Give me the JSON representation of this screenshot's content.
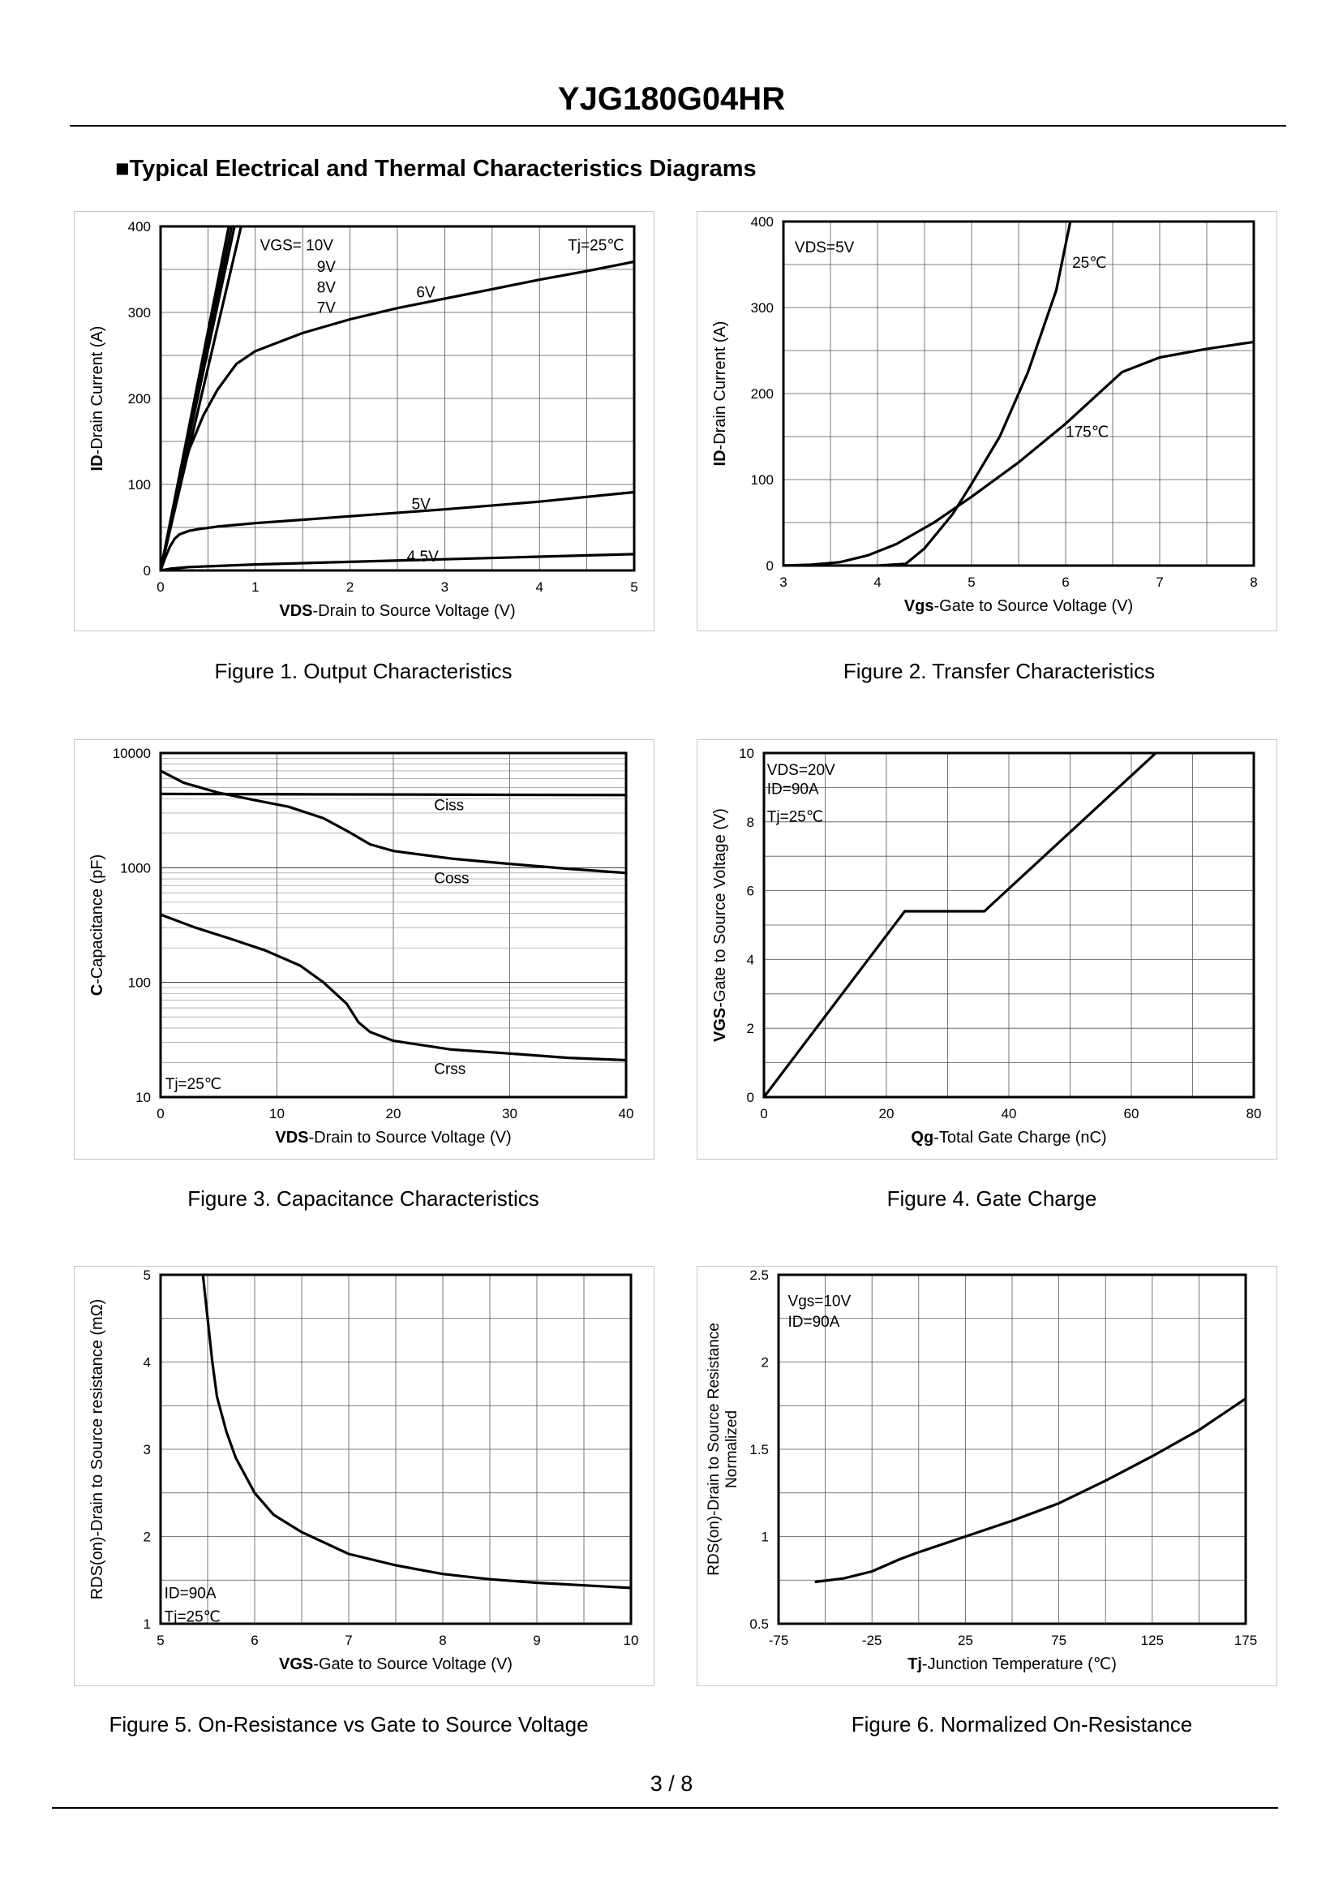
{
  "header": {
    "title": "YJG180G04HR"
  },
  "section": {
    "heading": "■Typical Electrical and Thermal Characteristics Diagrams"
  },
  "footer": {
    "page": "3 / 8"
  },
  "chart_data": [
    {
      "id": "fig1",
      "type": "line",
      "caption": "Figure 1.  Output Characteristics",
      "xlabel_bold": "VDS",
      "xlabel_rest": "-Drain to Source Voltage (V)",
      "ylabel_bold": "ID",
      "ylabel_rest": "-Drain Current (A)",
      "xlim": [
        0,
        5
      ],
      "ylim": [
        0,
        400
      ],
      "xticks": [
        0,
        1,
        2,
        3,
        4,
        5
      ],
      "yticks": [
        0,
        100,
        200,
        300,
        400
      ],
      "grid_x": [
        0.5,
        1,
        1.5,
        2,
        2.5,
        3,
        3.5,
        4,
        4.5
      ],
      "grid_y": [
        50,
        100,
        150,
        200,
        250,
        300,
        350
      ],
      "annotations": [
        {
          "text": "VGS= 10V",
          "x": 1.05,
          "y": 378
        },
        {
          "text": "9V",
          "x": 1.65,
          "y": 353
        },
        {
          "text": "8V",
          "x": 1.65,
          "y": 329
        },
        {
          "text": "7V",
          "x": 1.65,
          "y": 305
        },
        {
          "text": "Tj=25℃",
          "x": 4.3,
          "y": 378
        },
        {
          "text": "6V",
          "x": 2.7,
          "y": 323
        },
        {
          "text": "5V",
          "x": 2.65,
          "y": 77
        },
        {
          "text": "4.5V",
          "x": 2.6,
          "y": 16
        }
      ],
      "series": [
        {
          "name": "10V",
          "x": [
            0,
            0.75
          ],
          "y": [
            0,
            400
          ]
        },
        {
          "name": "9V",
          "x": [
            0,
            0.72
          ],
          "y": [
            0,
            400
          ]
        },
        {
          "name": "8V",
          "x": [
            0,
            0.78
          ],
          "y": [
            0,
            400
          ]
        },
        {
          "name": "7V",
          "x": [
            0,
            0.85
          ],
          "y": [
            0,
            400
          ]
        },
        {
          "name": "6V",
          "x": [
            0,
            0.1,
            0.2,
            0.3,
            0.45,
            0.6,
            0.8,
            1.0,
            1.5,
            2.0,
            2.5,
            3.0,
            3.5,
            4.0,
            4.5,
            5.0
          ],
          "y": [
            0,
            50,
            100,
            140,
            180,
            210,
            240,
            255,
            276,
            292,
            305,
            316,
            327,
            338,
            348,
            359
          ]
        },
        {
          "name": "5V",
          "x": [
            0,
            0.05,
            0.1,
            0.15,
            0.2,
            0.3,
            0.4,
            0.6,
            1.0,
            1.5,
            2.0,
            3.0,
            4.0,
            5.0
          ],
          "y": [
            0,
            15,
            28,
            37,
            42,
            46,
            48,
            51,
            55,
            59,
            63,
            71,
            80,
            91
          ]
        },
        {
          "name": "4.5V",
          "x": [
            0,
            0.1,
            0.3,
            1.0,
            2.0,
            3.0,
            4.0,
            5.0
          ],
          "y": [
            0,
            2,
            4,
            7,
            10,
            13,
            16,
            19
          ]
        }
      ]
    },
    {
      "id": "fig2",
      "type": "line",
      "caption": "Figure 2.  Transfer Characteristics",
      "xlabel_bold": "Vgs",
      "xlabel_rest": "-Gate to Source Voltage (V)",
      "ylabel_bold": "ID",
      "ylabel_rest": "-Drain Current (A)",
      "xlim": [
        3,
        8
      ],
      "ylim": [
        0,
        400
      ],
      "xticks": [
        3,
        4,
        5,
        6,
        7,
        8
      ],
      "yticks": [
        0,
        100,
        200,
        300,
        400
      ],
      "grid_x": [
        3.5,
        4,
        4.5,
        5,
        5.5,
        6,
        6.5,
        7,
        7.5
      ],
      "grid_y": [
        50,
        100,
        150,
        200,
        250,
        300,
        350
      ],
      "annotations": [
        {
          "text": "VDS=5V",
          "x": 3.12,
          "y": 370
        },
        {
          "text": "25℃",
          "x": 6.07,
          "y": 352
        },
        {
          "text": "175℃",
          "x": 6.0,
          "y": 155
        }
      ],
      "series": [
        {
          "name": "25℃",
          "x": [
            3.0,
            4.0,
            4.3,
            4.5,
            4.8,
            5.0,
            5.3,
            5.6,
            5.9,
            6.05
          ],
          "y": [
            0,
            0,
            2,
            20,
            60,
            95,
            150,
            225,
            320,
            400
          ]
        },
        {
          "name": "175℃",
          "x": [
            3.0,
            3.3,
            3.6,
            3.9,
            4.2,
            4.6,
            5.0,
            5.5,
            6.0,
            6.3,
            6.6,
            7.0,
            7.5,
            8.0
          ],
          "y": [
            0,
            1,
            4,
            12,
            25,
            50,
            80,
            120,
            165,
            195,
            225,
            242,
            252,
            260
          ]
        }
      ]
    },
    {
      "id": "fig3",
      "type": "line",
      "caption": "Figure 3.  Capacitance Characteristics",
      "xlabel_bold": "VDS",
      "xlabel_rest": "-Drain to Source Voltage (V)",
      "ylabel_bold": "C",
      "ylabel_rest": "-Capacitance (pF)",
      "yscale": "log",
      "xlim": [
        0,
        40
      ],
      "ylim": [
        10,
        10000
      ],
      "xticks": [
        0,
        10,
        20,
        30,
        40
      ],
      "yticks": [
        10,
        100,
        1000,
        10000
      ],
      "grid_x": [
        10,
        20,
        30
      ],
      "annotations": [
        {
          "text": "Ciss",
          "x": 23.5,
          "y": 3500
        },
        {
          "text": "Coss",
          "x": 23.5,
          "y": 810
        },
        {
          "text": "Crss",
          "x": 23.5,
          "y": 17.5
        },
        {
          "text": "Tj=25℃",
          "x": 0.4,
          "y": 13
        }
      ],
      "series": [
        {
          "name": "Ciss",
          "x": [
            0,
            40
          ],
          "y": [
            4400,
            4300
          ]
        },
        {
          "name": "Coss",
          "x": [
            0,
            2,
            5,
            8,
            11,
            14,
            16,
            18,
            20,
            25,
            30,
            35,
            40
          ],
          "y": [
            7000,
            5500,
            4500,
            3900,
            3400,
            2700,
            2100,
            1600,
            1400,
            1200,
            1080,
            980,
            900
          ]
        },
        {
          "name": "Crss",
          "x": [
            0,
            3,
            6,
            9,
            12,
            14,
            16,
            17,
            18,
            20,
            25,
            30,
            35,
            40
          ],
          "y": [
            390,
            300,
            240,
            190,
            140,
            100,
            65,
            45,
            37,
            31,
            26,
            24,
            22,
            21
          ]
        }
      ]
    },
    {
      "id": "fig4",
      "type": "line",
      "caption": "Figure 4.  Gate Charge",
      "xlabel_bold": "Qg",
      "xlabel_rest": "-Total Gate Charge (nC)",
      "ylabel_bold": "VGS",
      "ylabel_rest": "-Gate to Source Voltage (V)",
      "xlim": [
        0,
        80
      ],
      "ylim": [
        0,
        10
      ],
      "xticks": [
        0,
        20,
        40,
        60,
        80
      ],
      "yticks": [
        0,
        2,
        4,
        6,
        8,
        10
      ],
      "grid_x": [
        10,
        20,
        30,
        40,
        50,
        60,
        70
      ],
      "grid_y": [
        1,
        2,
        3,
        4,
        5,
        6,
        7,
        8,
        9
      ],
      "annotations": [
        {
          "text": "VDS=20V",
          "x": 0.5,
          "y": 9.5
        },
        {
          "text": "ID=90A",
          "x": 0.5,
          "y": 8.95
        },
        {
          "text": "Tj=25℃",
          "x": 0.5,
          "y": 8.15
        }
      ],
      "series": [
        {
          "name": "VGS",
          "x": [
            0,
            23,
            36,
            64
          ],
          "y": [
            0,
            5.4,
            5.4,
            10
          ]
        }
      ]
    },
    {
      "id": "fig5",
      "type": "line",
      "caption": "Figure 5.  On-Resistance vs Gate to Source Voltage",
      "xlabel_bold": "VGS",
      "xlabel_rest": "-Gate to Source Voltage (V)",
      "ylabel_html": "RDS(on)-Drain to Source resistance (mΩ)",
      "xlim": [
        5,
        10
      ],
      "ylim": [
        1,
        5
      ],
      "xticks": [
        5,
        6,
        7,
        8,
        9,
        10
      ],
      "yticks": [
        1,
        2,
        3,
        4,
        5
      ],
      "grid_x": [
        5.5,
        6,
        6.5,
        7,
        7.5,
        8,
        8.5,
        9,
        9.5
      ],
      "grid_y": [
        1.5,
        2,
        2.5,
        3,
        3.5,
        4,
        4.5
      ],
      "annotations": [
        {
          "text": "ID=90A",
          "x": 5.04,
          "y": 1.35
        },
        {
          "text": "Tj=25℃",
          "x": 5.04,
          "y": 1.08
        }
      ],
      "series": [
        {
          "name": "RDS(on)",
          "x": [
            5.45,
            5.5,
            5.55,
            5.6,
            5.7,
            5.8,
            6.0,
            6.2,
            6.5,
            7.0,
            7.5,
            8.0,
            8.5,
            9.0,
            9.5,
            10.0
          ],
          "y": [
            5.0,
            4.5,
            4.0,
            3.6,
            3.2,
            2.9,
            2.5,
            2.25,
            2.05,
            1.8,
            1.67,
            1.57,
            1.51,
            1.47,
            1.44,
            1.41
          ]
        }
      ]
    },
    {
      "id": "fig6",
      "type": "line",
      "caption": "Figure 6.  Normalized On-Resistance",
      "xlabel_bold": "Tj",
      "xlabel_rest": "-Junction  Temperature (℃)",
      "ylabel_line1": "RDS(on)-Drain to Source Resistance",
      "ylabel_line2": "Normalized",
      "xlim": [
        -75,
        175
      ],
      "ylim": [
        0.5,
        2.5
      ],
      "xticks": [
        -75,
        -25,
        25,
        75,
        125,
        175
      ],
      "yticks": [
        0.5,
        1,
        1.5,
        2,
        2.5
      ],
      "grid_x": [
        -50,
        -25,
        0,
        25,
        50,
        75,
        100,
        125,
        150
      ],
      "grid_y": [
        0.75,
        1,
        1.25,
        1.5,
        1.75,
        2,
        2.25
      ],
      "annotations": [
        {
          "text": "Vgs=10V",
          "x": -70,
          "y": 2.35
        },
        {
          "text": "ID=90A",
          "x": -70,
          "y": 2.23
        }
      ],
      "series": [
        {
          "name": "Normalized",
          "x": [
            -55,
            -40,
            -25,
            -10,
            0,
            25,
            50,
            75,
            100,
            125,
            150,
            175
          ],
          "y": [
            0.74,
            0.76,
            0.8,
            0.87,
            0.91,
            1.0,
            1.09,
            1.19,
            1.32,
            1.46,
            1.61,
            1.79
          ]
        }
      ]
    }
  ]
}
